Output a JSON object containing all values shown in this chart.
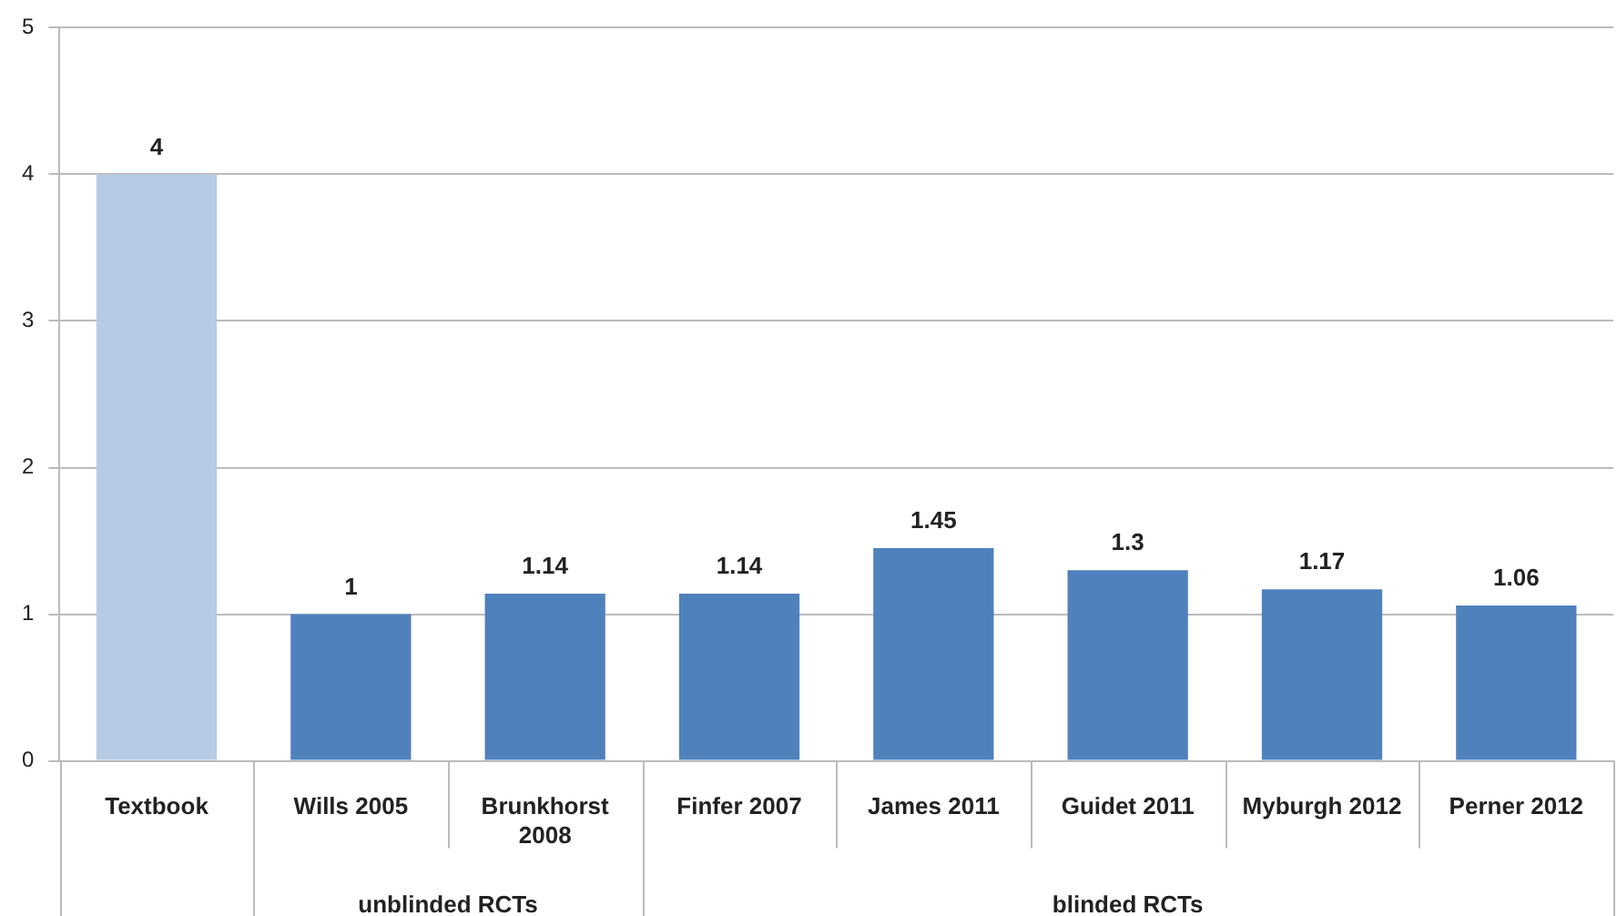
{
  "chart_data": {
    "type": "bar",
    "categories": [
      "Textbook",
      "Wills 2005",
      "Brunkhorst 2008",
      "Finfer 2007",
      "James 2011",
      "Guidet 2011",
      "Myburgh 2012",
      "Perner 2012"
    ],
    "values": [
      4,
      1,
      1.14,
      1.14,
      1.45,
      1.3,
      1.17,
      1.06
    ],
    "colors": [
      "#b7cbe4",
      "#4f81bd",
      "#4f81bd",
      "#4f81bd",
      "#4f81bd",
      "#4f81bd",
      "#4f81bd",
      "#4f81bd"
    ],
    "ylim": [
      0,
      5
    ],
    "yticks": [
      0,
      1,
      2,
      3,
      4,
      5
    ],
    "grid": "y",
    "data_labels": true,
    "annotations": [
      "unblinded RCTs",
      "blinded RCTs"
    ]
  }
}
